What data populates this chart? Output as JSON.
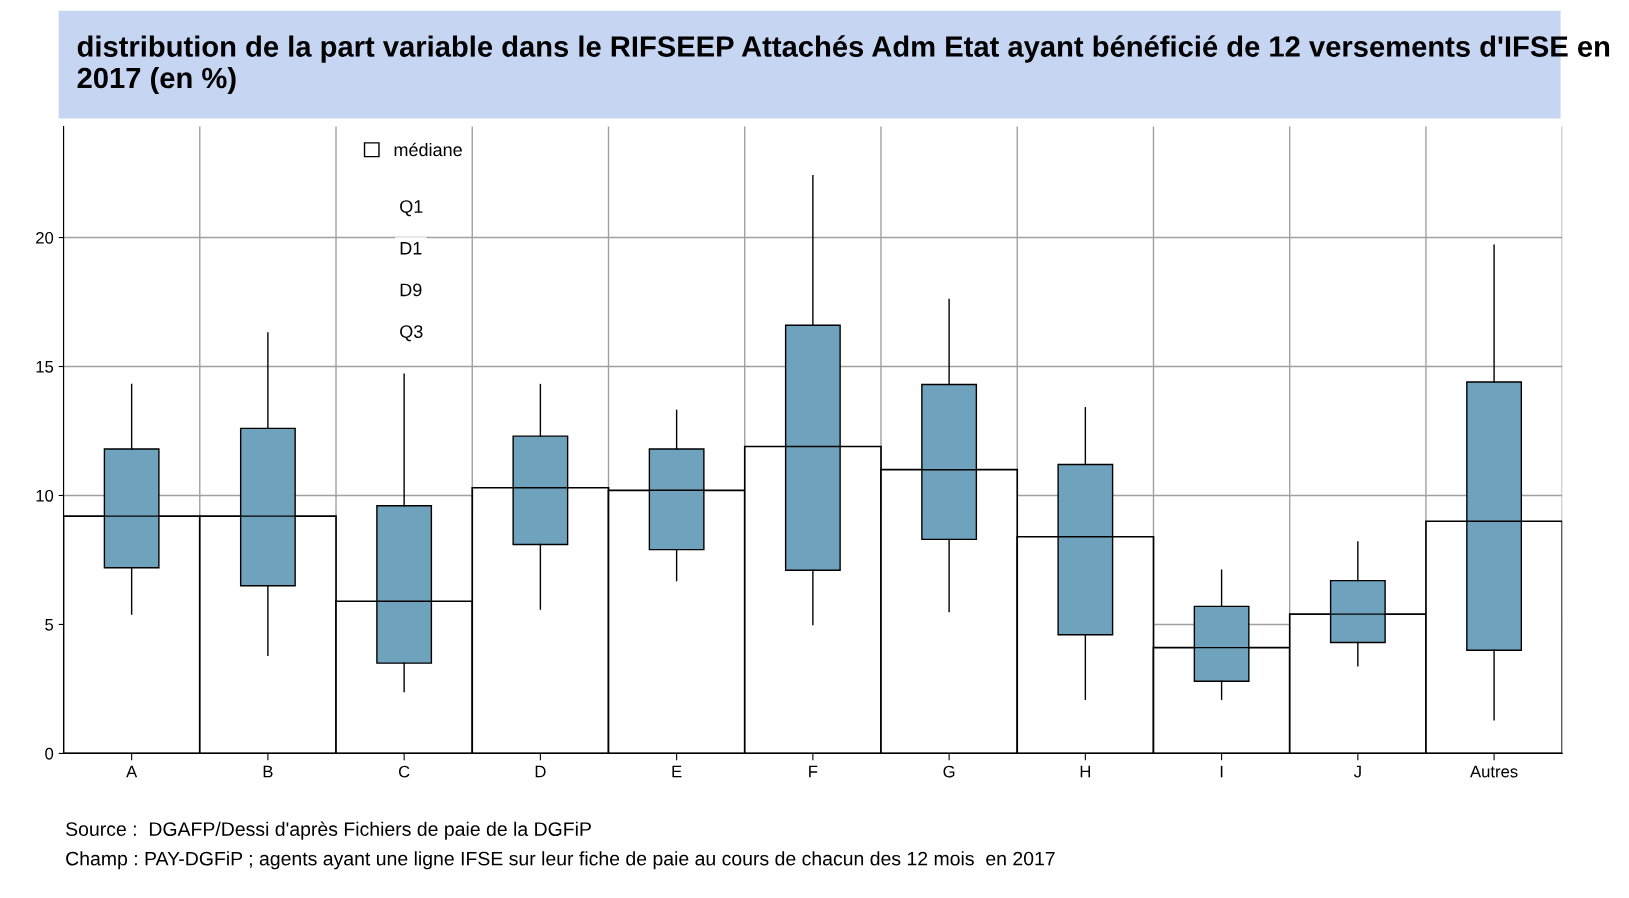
{
  "chart_data": {
    "type": "box",
    "title": "distribution de la part variable dans le RIFSEEP Attachés Adm Etat ayant bénéficié de 12 versements d'IFSE en 2017 (en %)",
    "categories": [
      "A",
      "B",
      "C",
      "D",
      "E",
      "F",
      "G",
      "H",
      "I",
      "J",
      "Autres"
    ],
    "series": [
      {
        "name": "médiane",
        "type": "bar",
        "color": "#ffffff",
        "values": [
          9.2,
          9.2,
          5.9,
          10.3,
          10.2,
          11.9,
          11.0,
          8.4,
          4.1,
          5.4,
          9.0
        ]
      },
      {
        "color": "#6fa3bd",
        "boxes": [
          {
            "low": 5.4,
            "q1": 7.2,
            "median": 9.2,
            "q3": 11.8,
            "high": 14.3
          },
          {
            "low": 3.8,
            "q1": 6.5,
            "median": 9.2,
            "q3": 12.6,
            "high": 16.3
          },
          {
            "low": 2.4,
            "q1": 3.5,
            "median": 5.9,
            "q3": 9.6,
            "high": 14.7
          },
          {
            "low": 5.6,
            "q1": 8.1,
            "median": 10.3,
            "q3": 12.3,
            "high": 14.3
          },
          {
            "low": 6.7,
            "q1": 7.9,
            "median": 10.2,
            "q3": 11.8,
            "high": 13.3
          },
          {
            "low": 5.0,
            "q1": 7.1,
            "median": 11.9,
            "q3": 16.6,
            "high": 22.4
          },
          {
            "low": 5.5,
            "q1": 8.3,
            "median": 11.0,
            "q3": 14.3,
            "high": 17.6
          },
          {
            "low": 2.1,
            "q1": 4.6,
            "median": 8.4,
            "q3": 11.2,
            "high": 13.4
          },
          {
            "low": 2.1,
            "q1": 2.8,
            "median": 4.1,
            "q3": 5.7,
            "high": 7.1
          },
          {
            "low": 3.4,
            "q1": 4.3,
            "median": 5.4,
            "q3": 6.7,
            "high": 8.2
          },
          {
            "low": 1.3,
            "q1": 4.0,
            "median": 9.0,
            "q3": 14.4,
            "high": 19.7
          }
        ]
      }
    ],
    "ylim": [
      0,
      24.3
    ],
    "yticks": [
      0,
      5,
      10,
      15,
      20
    ],
    "grid": true,
    "legend": "top left",
    "annotations": [
      "Q1",
      "D1",
      "D9",
      "Q3",
      "Source :  DGAFP/Dessi d'après Fichiers de paie de la DGFiP",
      "Champ : PAY-DGFiP ; agents ayant une ligne IFSE sur leur fiche de paie au cours de chacun des 12 mois  en 2017"
    ]
  }
}
